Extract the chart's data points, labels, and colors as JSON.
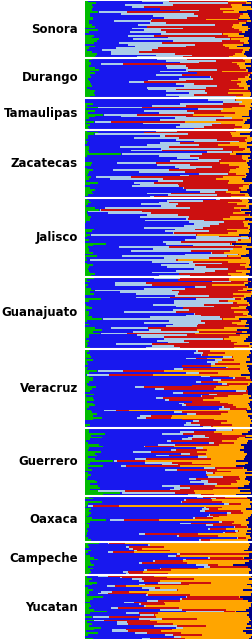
{
  "states": [
    {
      "name": "Sonora",
      "label": "Sonora",
      "n": 32,
      "blue": 0.28,
      "lightblue": 0.22,
      "red": 0.35,
      "orange": 0.08,
      "green": 0.04,
      "darkblue": 0.03
    },
    {
      "name": "Durango",
      "label": "Durango",
      "n": 22,
      "blue": 0.44,
      "lightblue": 0.18,
      "red": 0.25,
      "orange": 0.08,
      "green": 0.03,
      "darkblue": 0.02
    },
    {
      "name": "Tamaulipas",
      "label": "Tamaulipas",
      "n": 18,
      "blue": 0.45,
      "lightblue": 0.18,
      "red": 0.24,
      "orange": 0.08,
      "green": 0.03,
      "darkblue": 0.02
    },
    {
      "name": "Zacatecas",
      "label": "Zacatecas",
      "n": 38,
      "blue": 0.42,
      "lightblue": 0.19,
      "red": 0.27,
      "orange": 0.07,
      "green": 0.03,
      "darkblue": 0.02
    },
    {
      "name": "Jalisco",
      "label": "Jalisco",
      "n": 44,
      "blue": 0.43,
      "lightblue": 0.21,
      "red": 0.25,
      "orange": 0.06,
      "green": 0.03,
      "darkblue": 0.02
    },
    {
      "name": "Guanajuato",
      "label": "Guanajuato",
      "n": 40,
      "blue": 0.44,
      "lightblue": 0.21,
      "red": 0.24,
      "orange": 0.06,
      "green": 0.03,
      "darkblue": 0.02
    },
    {
      "name": "Veracruz",
      "label": "Veracruz",
      "n": 44,
      "blue": 0.57,
      "lightblue": 0.04,
      "red": 0.17,
      "orange": 0.17,
      "green": 0.03,
      "darkblue": 0.02
    },
    {
      "name": "Guerrero",
      "label": "Guerrero",
      "n": 38,
      "blue": 0.56,
      "lightblue": 0.06,
      "red": 0.16,
      "orange": 0.15,
      "green": 0.04,
      "darkblue": 0.03
    },
    {
      "name": "Oaxaca",
      "label": "Oaxaca",
      "n": 26,
      "blue": 0.72,
      "lightblue": 0.02,
      "red": 0.09,
      "orange": 0.12,
      "green": 0.03,
      "darkblue": 0.02
    },
    {
      "name": "Campeche",
      "label": "Campeche",
      "n": 18,
      "blue": 0.28,
      "lightblue": 0.02,
      "red": 0.18,
      "orange": 0.47,
      "green": 0.03,
      "darkblue": 0.02
    },
    {
      "name": "Yucatan",
      "label": "Yucatan",
      "n": 36,
      "blue": 0.26,
      "lightblue": 0.07,
      "red": 0.2,
      "orange": 0.42,
      "green": 0.03,
      "darkblue": 0.02
    }
  ],
  "color_order": [
    "green",
    "blue",
    "lightblue",
    "red",
    "orange",
    "darkblue"
  ],
  "colors": {
    "blue": "#1818EE",
    "lightblue": "#AACCE8",
    "red": "#CC1010",
    "orange": "#FFA500",
    "green": "#00BB00",
    "darkblue": "#000088"
  },
  "separator_color": "white",
  "background_color": "white",
  "label_fontsize": 8.5,
  "figsize": [
    2.53,
    6.4
  ],
  "dpi": 100,
  "combined_labels": {
    "Durango": "Durango",
    "Tamaulipas": "Tamaulipas",
    "Oaxaca": "Oaxaca",
    "Campeche": "Campeche"
  }
}
